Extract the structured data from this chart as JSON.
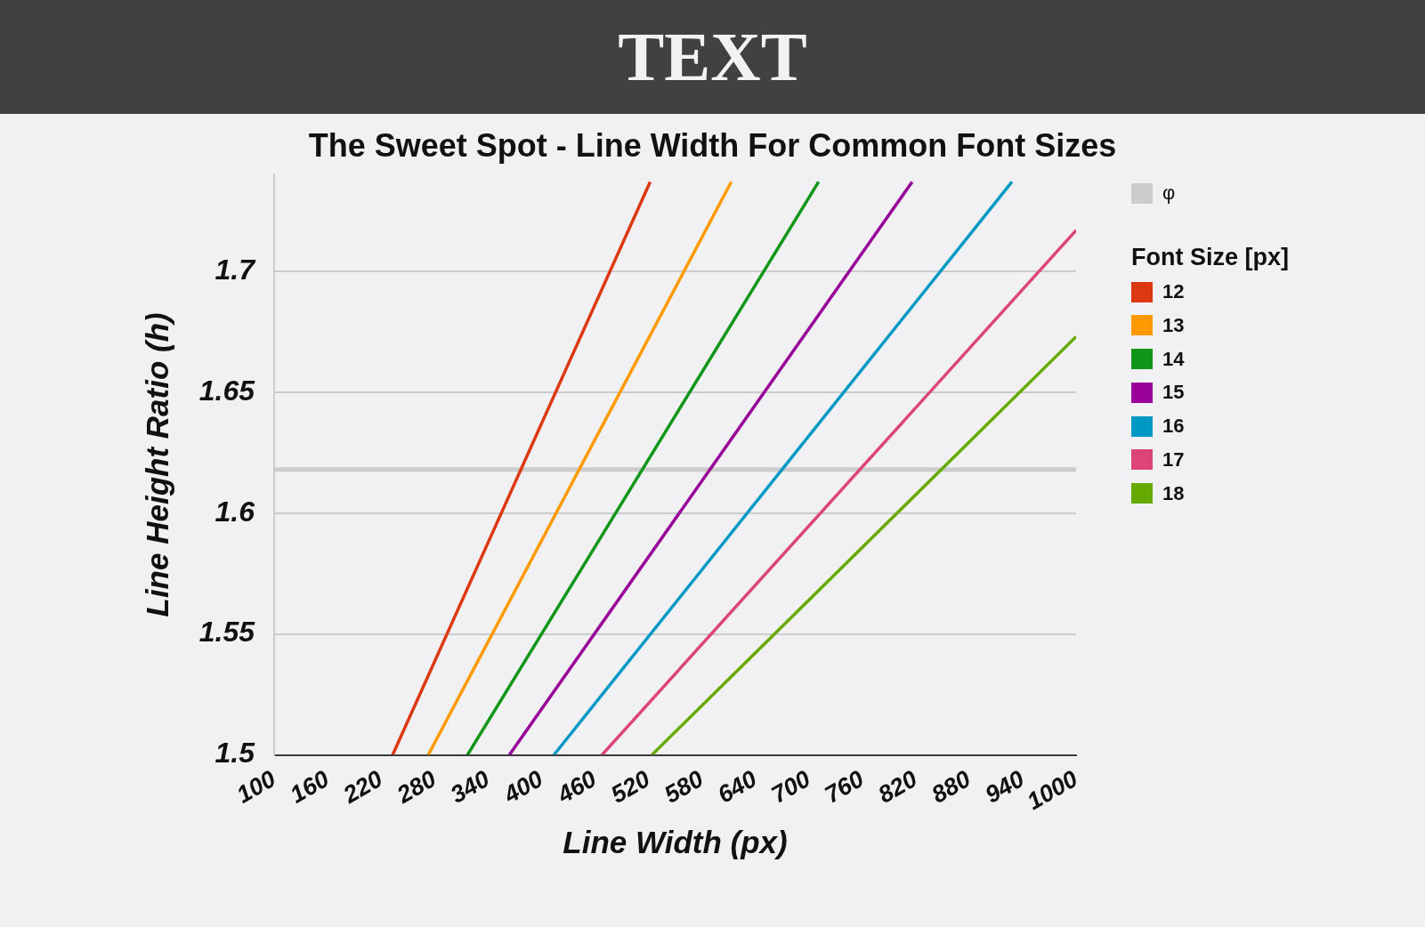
{
  "chart_data": {
    "type": "line",
    "title": "The Sweet Spot - Line Width For Common Font Sizes",
    "annotations": [
      "TEXT"
    ],
    "xlabel": "Line Width (px)",
    "ylabel": "Line Height Ratio (h)",
    "legend_title": "Font Size [px]",
    "xlim": [
      100,
      1000
    ],
    "xticks": [
      100,
      160,
      220,
      280,
      340,
      400,
      460,
      520,
      580,
      640,
      700,
      760,
      820,
      880,
      940,
      1000
    ],
    "ylim": [
      1.5,
      1.74
    ],
    "yticks": [
      1.5,
      1.55,
      1.6,
      1.65,
      1.7
    ],
    "grid": "y",
    "legend": "top right",
    "marker": "none",
    "line_style": "solid",
    "ref_lines": [
      {
        "axis": "y",
        "value": 1.618,
        "label": "φ",
        "color": "#cccccc"
      }
    ],
    "series": [
      {
        "name": "12",
        "color": "#dc3912",
        "x": [
          233,
          522
        ],
        "values": [
          1.5,
          1.737
        ]
      },
      {
        "name": "13",
        "color": "#ff9900",
        "x": [
          273,
          613
        ],
        "values": [
          1.5,
          1.737
        ]
      },
      {
        "name": "14",
        "color": "#109618",
        "x": [
          317,
          711
        ],
        "values": [
          1.5,
          1.737
        ]
      },
      {
        "name": "15",
        "color": "#990099",
        "x": [
          364,
          816
        ],
        "values": [
          1.5,
          1.737
        ]
      },
      {
        "name": "16",
        "color": "#0099c6",
        "x": [
          414,
          928
        ],
        "values": [
          1.5,
          1.737
        ]
      },
      {
        "name": "17",
        "color": "#dd4477",
        "x": [
          468,
          1000
        ],
        "values": [
          1.5,
          1.717
        ]
      },
      {
        "name": "18",
        "color": "#66aa00",
        "x": [
          524,
          1000
        ],
        "values": [
          1.5,
          1.673
        ]
      }
    ]
  }
}
